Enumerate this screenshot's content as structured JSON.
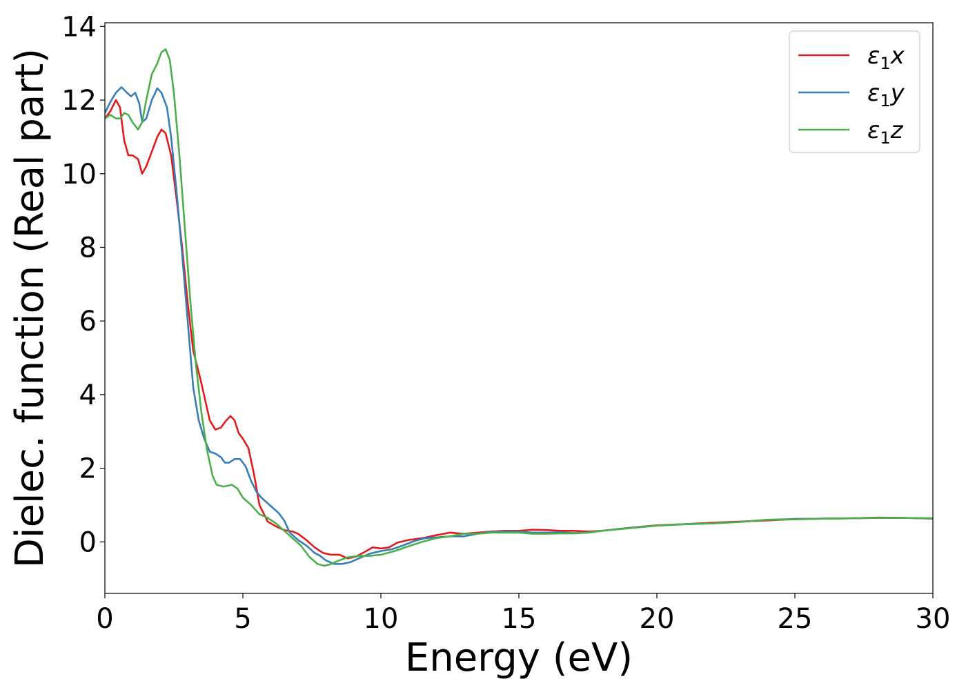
{
  "chart_data": {
    "type": "line",
    "xlabel": "Energy (eV)",
    "ylabel": "Dielec. function (Real part)",
    "xlim": [
      0,
      30
    ],
    "ylim": [
      -1.4,
      14.1
    ],
    "xticks": [
      0,
      5,
      10,
      15,
      20,
      25,
      30
    ],
    "yticks": [
      0,
      2,
      4,
      6,
      8,
      10,
      12,
      14
    ],
    "grid": false,
    "legend_position": "top-right",
    "series": [
      {
        "name": "ε₁x",
        "legend_base": "ε",
        "legend_sub": "1",
        "legend_var": "x",
        "color": "#e31a1c",
        "points": [
          [
            0,
            11.5
          ],
          [
            0.2,
            11.7
          ],
          [
            0.4,
            12.0
          ],
          [
            0.55,
            11.8
          ],
          [
            0.7,
            10.9
          ],
          [
            0.85,
            10.5
          ],
          [
            1.0,
            10.5
          ],
          [
            1.2,
            10.4
          ],
          [
            1.35,
            10.0
          ],
          [
            1.5,
            10.2
          ],
          [
            1.7,
            10.6
          ],
          [
            1.9,
            11.0
          ],
          [
            2.05,
            11.2
          ],
          [
            2.2,
            11.1
          ],
          [
            2.4,
            10.5
          ],
          [
            2.6,
            9.3
          ],
          [
            2.8,
            8.0
          ],
          [
            3.0,
            6.5
          ],
          [
            3.2,
            5.2
          ],
          [
            3.5,
            4.3
          ],
          [
            3.8,
            3.3
          ],
          [
            4.0,
            3.05
          ],
          [
            4.2,
            3.1
          ],
          [
            4.4,
            3.3
          ],
          [
            4.55,
            3.42
          ],
          [
            4.7,
            3.3
          ],
          [
            4.85,
            2.95
          ],
          [
            5.0,
            2.8
          ],
          [
            5.2,
            2.55
          ],
          [
            5.4,
            1.85
          ],
          [
            5.6,
            1.0
          ],
          [
            5.9,
            0.55
          ],
          [
            6.2,
            0.42
          ],
          [
            6.5,
            0.32
          ],
          [
            6.8,
            0.28
          ],
          [
            7.0,
            0.22
          ],
          [
            7.3,
            0.05
          ],
          [
            7.6,
            -0.15
          ],
          [
            7.9,
            -0.3
          ],
          [
            8.2,
            -0.35
          ],
          [
            8.5,
            -0.35
          ],
          [
            8.8,
            -0.45
          ],
          [
            9.1,
            -0.4
          ],
          [
            9.4,
            -0.28
          ],
          [
            9.7,
            -0.15
          ],
          [
            10.0,
            -0.18
          ],
          [
            10.3,
            -0.15
          ],
          [
            10.6,
            -0.02
          ],
          [
            11.0,
            0.05
          ],
          [
            11.5,
            0.1
          ],
          [
            12.0,
            0.18
          ],
          [
            12.5,
            0.25
          ],
          [
            13.0,
            0.22
          ],
          [
            13.5,
            0.25
          ],
          [
            14.0,
            0.28
          ],
          [
            14.5,
            0.3
          ],
          [
            15.0,
            0.3
          ],
          [
            15.5,
            0.33
          ],
          [
            16.0,
            0.32
          ],
          [
            16.5,
            0.3
          ],
          [
            17.0,
            0.3
          ],
          [
            17.5,
            0.28
          ],
          [
            18.0,
            0.3
          ],
          [
            19.0,
            0.38
          ],
          [
            20.0,
            0.45
          ],
          [
            21.0,
            0.48
          ],
          [
            22.0,
            0.52
          ],
          [
            23.0,
            0.55
          ],
          [
            24.0,
            0.58
          ],
          [
            25.0,
            0.62
          ],
          [
            26.0,
            0.63
          ],
          [
            27.0,
            0.64
          ],
          [
            28.0,
            0.66
          ],
          [
            29.0,
            0.65
          ],
          [
            30.0,
            0.63
          ]
        ]
      },
      {
        "name": "ε₁y",
        "legend_base": "ε",
        "legend_sub": "1",
        "legend_var": "y",
        "color": "#377eb8",
        "points": [
          [
            0,
            11.65
          ],
          [
            0.2,
            11.95
          ],
          [
            0.4,
            12.2
          ],
          [
            0.6,
            12.35
          ],
          [
            0.8,
            12.2
          ],
          [
            0.95,
            12.1
          ],
          [
            1.1,
            12.2
          ],
          [
            1.25,
            11.9
          ],
          [
            1.35,
            11.4
          ],
          [
            1.5,
            11.5
          ],
          [
            1.7,
            12.0
          ],
          [
            1.9,
            12.32
          ],
          [
            2.05,
            12.2
          ],
          [
            2.25,
            11.8
          ],
          [
            2.4,
            11.0
          ],
          [
            2.6,
            9.5
          ],
          [
            2.8,
            7.8
          ],
          [
            3.0,
            6.0
          ],
          [
            3.2,
            4.2
          ],
          [
            3.4,
            3.3
          ],
          [
            3.6,
            2.8
          ],
          [
            3.8,
            2.45
          ],
          [
            4.0,
            2.4
          ],
          [
            4.2,
            2.3
          ],
          [
            4.35,
            2.15
          ],
          [
            4.5,
            2.15
          ],
          [
            4.7,
            2.25
          ],
          [
            4.9,
            2.25
          ],
          [
            5.1,
            2.05
          ],
          [
            5.3,
            1.65
          ],
          [
            5.5,
            1.35
          ],
          [
            5.7,
            1.18
          ],
          [
            6.0,
            0.98
          ],
          [
            6.3,
            0.78
          ],
          [
            6.5,
            0.58
          ],
          [
            6.7,
            0.25
          ],
          [
            7.0,
            0.05
          ],
          [
            7.3,
            -0.1
          ],
          [
            7.6,
            -0.3
          ],
          [
            7.8,
            -0.38
          ],
          [
            8.0,
            -0.5
          ],
          [
            8.3,
            -0.6
          ],
          [
            8.6,
            -0.6
          ],
          [
            8.9,
            -0.55
          ],
          [
            9.2,
            -0.45
          ],
          [
            9.6,
            -0.32
          ],
          [
            10.0,
            -0.25
          ],
          [
            10.4,
            -0.2
          ],
          [
            10.8,
            -0.1
          ],
          [
            11.2,
            0.02
          ],
          [
            11.6,
            0.1
          ],
          [
            12.0,
            0.12
          ],
          [
            12.5,
            0.15
          ],
          [
            13.0,
            0.15
          ],
          [
            13.5,
            0.22
          ],
          [
            14.0,
            0.27
          ],
          [
            14.5,
            0.28
          ],
          [
            15.0,
            0.28
          ],
          [
            15.5,
            0.25
          ],
          [
            16.0,
            0.25
          ],
          [
            16.5,
            0.26
          ],
          [
            17.0,
            0.24
          ],
          [
            17.5,
            0.25
          ],
          [
            18.0,
            0.3
          ],
          [
            19.0,
            0.38
          ],
          [
            20.0,
            0.44
          ],
          [
            21.0,
            0.48
          ],
          [
            22.0,
            0.5
          ],
          [
            23.0,
            0.54
          ],
          [
            24.0,
            0.6
          ],
          [
            25.0,
            0.62
          ],
          [
            26.0,
            0.63
          ],
          [
            27.0,
            0.64
          ],
          [
            28.0,
            0.65
          ],
          [
            29.0,
            0.65
          ],
          [
            30.0,
            0.64
          ]
        ]
      },
      {
        "name": "ε₁z",
        "legend_base": "ε",
        "legend_sub": "1",
        "legend_var": "z",
        "color": "#4daf4a",
        "points": [
          [
            0,
            11.5
          ],
          [
            0.2,
            11.6
          ],
          [
            0.4,
            11.5
          ],
          [
            0.55,
            11.5
          ],
          [
            0.7,
            11.65
          ],
          [
            0.85,
            11.6
          ],
          [
            1.0,
            11.4
          ],
          [
            1.2,
            11.2
          ],
          [
            1.35,
            11.4
          ],
          [
            1.5,
            12.0
          ],
          [
            1.7,
            12.7
          ],
          [
            1.9,
            13.0
          ],
          [
            2.05,
            13.3
          ],
          [
            2.2,
            13.38
          ],
          [
            2.35,
            13.1
          ],
          [
            2.5,
            12.2
          ],
          [
            2.7,
            10.5
          ],
          [
            2.9,
            8.5
          ],
          [
            3.1,
            6.5
          ],
          [
            3.3,
            4.8
          ],
          [
            3.5,
            3.5
          ],
          [
            3.7,
            2.5
          ],
          [
            3.9,
            1.8
          ],
          [
            4.05,
            1.55
          ],
          [
            4.3,
            1.5
          ],
          [
            4.6,
            1.55
          ],
          [
            4.8,
            1.45
          ],
          [
            5.0,
            1.2
          ],
          [
            5.3,
            1.0
          ],
          [
            5.6,
            0.75
          ],
          [
            5.9,
            0.65
          ],
          [
            6.2,
            0.5
          ],
          [
            6.5,
            0.3
          ],
          [
            6.8,
            0.1
          ],
          [
            7.1,
            -0.1
          ],
          [
            7.4,
            -0.4
          ],
          [
            7.7,
            -0.6
          ],
          [
            7.95,
            -0.65
          ],
          [
            8.2,
            -0.6
          ],
          [
            8.5,
            -0.5
          ],
          [
            8.8,
            -0.42
          ],
          [
            9.2,
            -0.38
          ],
          [
            9.6,
            -0.38
          ],
          [
            10.0,
            -0.35
          ],
          [
            10.5,
            -0.25
          ],
          [
            11.0,
            -0.12
          ],
          [
            11.5,
            0.0
          ],
          [
            12.0,
            0.1
          ],
          [
            12.5,
            0.15
          ],
          [
            13.0,
            0.22
          ],
          [
            13.5,
            0.22
          ],
          [
            14.0,
            0.25
          ],
          [
            14.5,
            0.25
          ],
          [
            15.0,
            0.25
          ],
          [
            15.5,
            0.22
          ],
          [
            16.0,
            0.22
          ],
          [
            16.5,
            0.23
          ],
          [
            17.0,
            0.23
          ],
          [
            17.5,
            0.25
          ],
          [
            18.0,
            0.3
          ],
          [
            19.0,
            0.37
          ],
          [
            20.0,
            0.44
          ],
          [
            21.0,
            0.48
          ],
          [
            22.0,
            0.5
          ],
          [
            23.0,
            0.54
          ],
          [
            24.0,
            0.6
          ],
          [
            25.0,
            0.61
          ],
          [
            26.0,
            0.63
          ],
          [
            27.0,
            0.64
          ],
          [
            28.0,
            0.65
          ],
          [
            29.0,
            0.65
          ],
          [
            30.0,
            0.64
          ]
        ]
      }
    ]
  }
}
